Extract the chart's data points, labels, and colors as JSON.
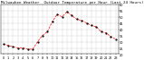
{
  "title": "Milwaukee Weather  Outdoor Temperature per Hour (Last 24 Hours)",
  "hours": [
    0,
    1,
    2,
    3,
    4,
    5,
    6,
    7,
    8,
    9,
    10,
    11,
    12,
    13,
    14,
    15,
    16,
    17,
    18,
    19,
    20,
    21,
    22,
    23
  ],
  "temps": [
    28,
    27,
    26,
    25,
    25,
    24,
    24,
    30,
    35,
    38,
    46,
    52,
    50,
    54,
    51,
    48,
    47,
    45,
    43,
    42,
    38,
    37,
    34,
    32
  ],
  "line_color": "#ff0000",
  "marker_color": "#000000",
  "bg_color": "#ffffff",
  "grid_color": "#888888",
  "title_color": "#000000",
  "ylim": [
    20,
    60
  ],
  "title_fontsize": 3.0,
  "tick_fontsize": 2.5,
  "ytick_values": [
    60,
    55,
    50,
    45,
    40,
    35,
    30,
    25,
    20
  ],
  "ytick_labels": [
    "60",
    "55",
    "50",
    "45",
    "40",
    "35",
    "30",
    "25",
    "20"
  ]
}
